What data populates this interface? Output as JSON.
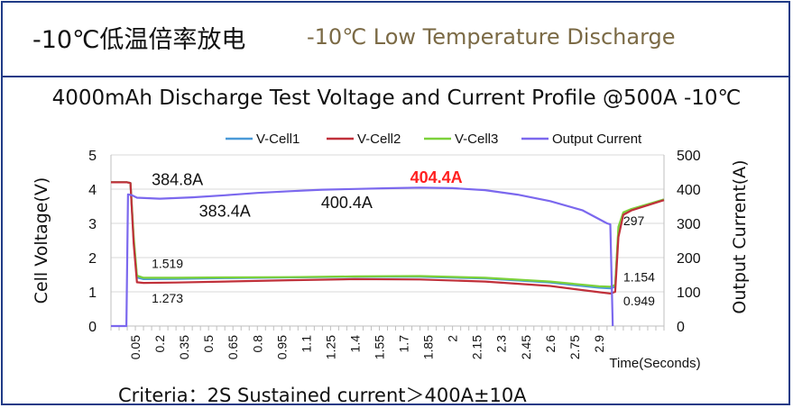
{
  "header": {
    "title_cn": "-10℃低温倍率放电",
    "title_en": "-10℃ Low Temperature Discharge"
  },
  "footer": {
    "criteria": "Criteria：2S Sustained current＞400A±10A"
  },
  "colors": {
    "frame": "#1f3a86",
    "vcell1": "#4a9ad8",
    "vcell2": "#c0303a",
    "vcell3": "#7cd13a",
    "current": "#7b68ee",
    "highlight": "#ff2020"
  },
  "chart_data": {
    "type": "line",
    "title": "4000mAh  Discharge Test Voltage and Current Profile @500A -10℃",
    "xlabel": "Time(Seconds)",
    "ylabel": "Cell  Voltage(V)",
    "y2label": "Output Current(A)",
    "ylim": [
      0,
      5
    ],
    "y2lim": [
      0,
      500
    ],
    "xlim": [
      -0.1,
      3.3
    ],
    "yticks": [
      "0",
      "1",
      "2",
      "3",
      "4",
      "5"
    ],
    "y2ticks": [
      "0",
      "100",
      "200",
      "300",
      "400",
      "500"
    ],
    "xticks": [
      "0.05",
      "0.2",
      "0.35",
      "0.5",
      "0.65",
      "0.8",
      "0.95",
      "1.1",
      "1.25",
      "1.4",
      "1.55",
      "1.7",
      "1.85",
      "2",
      "2.15",
      "2.3",
      "2.45",
      "2.6",
      "2.75",
      "2.9"
    ],
    "grid": "horizontal",
    "legend_position": "top",
    "series": [
      {
        "name": "V-Cell1",
        "axis": "left",
        "x": [
          -0.1,
          0.0,
          0.02,
          0.04,
          0.06,
          0.1,
          0.3,
          0.6,
          1.0,
          1.4,
          1.8,
          2.2,
          2.6,
          2.9,
          2.97,
          3.0,
          3.02,
          3.05,
          3.1,
          3.3
        ],
        "y": [
          4.2,
          4.2,
          4.18,
          2.5,
          1.42,
          1.37,
          1.38,
          1.4,
          1.42,
          1.44,
          1.44,
          1.39,
          1.27,
          1.12,
          1.1,
          1.15,
          2.8,
          3.3,
          3.4,
          3.7
        ]
      },
      {
        "name": "V-Cell2",
        "axis": "left",
        "x": [
          -0.1,
          0.0,
          0.02,
          0.04,
          0.06,
          0.1,
          0.3,
          0.6,
          1.0,
          1.4,
          1.8,
          2.2,
          2.6,
          2.9,
          2.97,
          3.0,
          3.02,
          3.05,
          3.1,
          3.3
        ],
        "y": [
          4.2,
          4.2,
          4.18,
          2.4,
          1.28,
          1.26,
          1.27,
          1.3,
          1.34,
          1.37,
          1.36,
          1.3,
          1.17,
          0.99,
          0.95,
          1.0,
          2.6,
          3.25,
          3.38,
          3.68
        ]
      },
      {
        "name": "V-Cell3",
        "axis": "left",
        "x": [
          -0.1,
          0.0,
          0.02,
          0.04,
          0.06,
          0.1,
          0.3,
          0.6,
          1.0,
          1.4,
          1.8,
          2.2,
          2.6,
          2.9,
          2.97,
          3.0,
          3.02,
          3.05,
          3.1,
          3.3
        ],
        "y": [
          4.2,
          4.2,
          4.18,
          2.6,
          1.47,
          1.41,
          1.41,
          1.42,
          1.43,
          1.45,
          1.46,
          1.41,
          1.3,
          1.16,
          1.15,
          1.2,
          2.9,
          3.32,
          3.42,
          3.7
        ]
      },
      {
        "name": "Output Current",
        "axis": "right",
        "x": [
          -0.1,
          -0.005,
          0.005,
          0.03,
          0.06,
          0.2,
          0.4,
          0.6,
          0.8,
          1.0,
          1.2,
          1.4,
          1.6,
          1.8,
          2.0,
          2.2,
          2.4,
          2.6,
          2.8,
          2.95,
          2.97,
          2.985
        ],
        "y": [
          0,
          0,
          384.8,
          382,
          375,
          372,
          376,
          382,
          389,
          394,
          398.5,
          400.4,
          402.5,
          404.4,
          403,
          397,
          384,
          365,
          338,
          300,
          297,
          0
        ]
      }
    ],
    "annotations": [
      {
        "text": "384.8A",
        "x": 0.15,
        "y2": 412
      },
      {
        "text": "404.4A",
        "x": 1.9,
        "y2": 418,
        "highlight": true
      },
      {
        "text": "383.4A",
        "x": 0.6,
        "y2": 320
      },
      {
        "text": "400.4A",
        "x": 1.35,
        "y2": 345
      },
      {
        "text": "1.519",
        "x": 0.15,
        "y": 1.7
      },
      {
        "text": "1.273",
        "x": 0.15,
        "y": 0.68
      },
      {
        "text": "297",
        "x": 3.05,
        "y": 2.95
      },
      {
        "text": "1.154",
        "x": 3.05,
        "y": 1.3
      },
      {
        "text": "0.949",
        "x": 3.05,
        "y": 0.6
      }
    ]
  }
}
